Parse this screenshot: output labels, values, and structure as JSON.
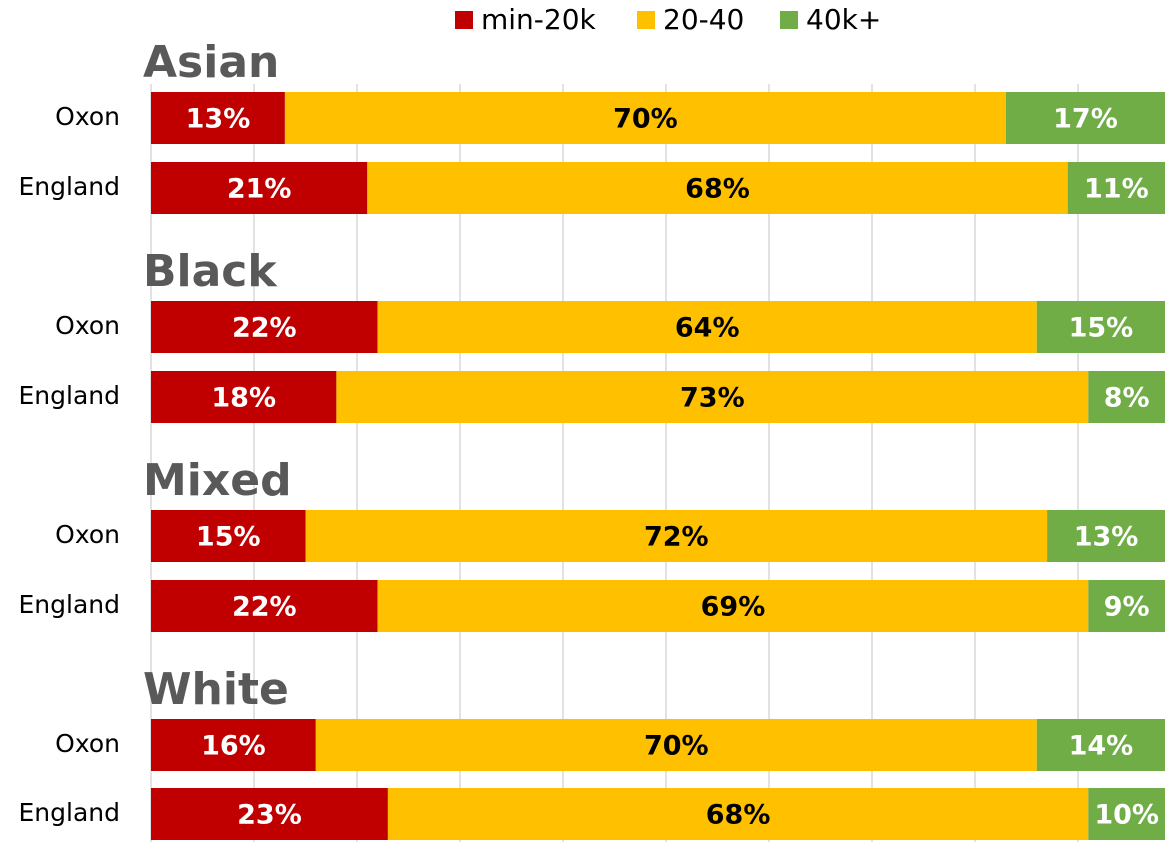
{
  "chart_data": {
    "type": "stacked_barh",
    "group_labels": [
      "Asian",
      "Black",
      "Mixed",
      "White"
    ],
    "categories": [
      "Oxon",
      "England",
      "Oxon",
      "England",
      "Oxon",
      "England",
      "Oxon",
      "England"
    ],
    "series": [
      {
        "name": "min-20k",
        "color": "#c00000",
        "values": [
          13,
          21,
          22,
          18,
          15,
          22,
          16,
          23
        ],
        "value_labels": [
          "13%",
          "21%",
          "22%",
          "18%",
          "15%",
          "22%",
          "16%",
          "23%"
        ]
      },
      {
        "name": "20-40",
        "color": "#ffc000",
        "values": [
          70,
          68,
          64,
          73,
          72,
          69,
          70,
          68
        ],
        "value_labels": [
          "70%",
          "68%",
          "64%",
          "73%",
          "72%",
          "69%",
          "70%",
          "68%"
        ]
      },
      {
        "name": "40k+",
        "color": "#70ad47",
        "values": [
          17,
          11,
          15,
          8,
          13,
          9,
          14,
          10
        ],
        "value_labels": [
          "17%",
          "11%",
          "15%",
          "8%",
          "13%",
          "9%",
          "14%",
          "10%"
        ]
      }
    ],
    "xlim": [
      0,
      100
    ],
    "xticks": [
      0,
      10,
      20,
      30,
      40,
      50,
      60,
      70,
      80,
      90,
      100
    ],
    "grid": true,
    "legend": "top"
  }
}
